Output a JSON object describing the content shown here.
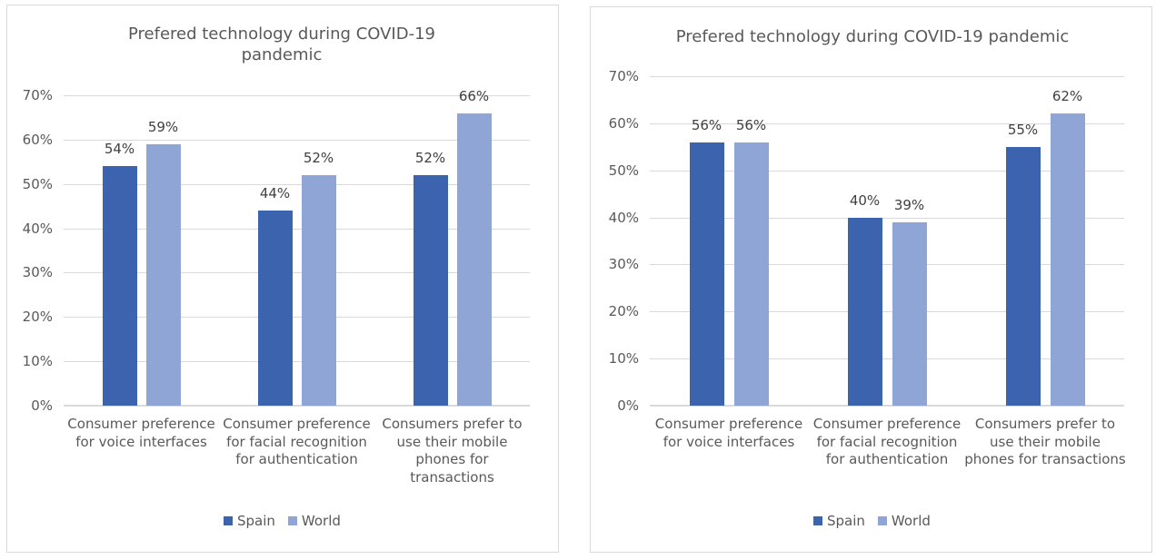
{
  "chart_data": [
    {
      "type": "bar",
      "title": "Prefered technology during COVID-19 pandemic",
      "categories": [
        "Consumer preference for voice interfaces",
        "Consumer preference for facial recognition for authentication",
        "Consumers prefer to use their mobile phones for transactions"
      ],
      "series": [
        {
          "name": "Spain",
          "color": "#3c64ae",
          "values": [
            54,
            44,
            52
          ],
          "labels": [
            "54%",
            "44%",
            "52%"
          ]
        },
        {
          "name": "World",
          "color": "#8fa5d5",
          "values": [
            59,
            52,
            66
          ],
          "labels": [
            "59%",
            "52%",
            "66%"
          ]
        }
      ],
      "ylim": [
        0,
        70
      ],
      "yticks": [
        "0%",
        "10%",
        "20%",
        "30%",
        "40%",
        "50%",
        "60%",
        "70%"
      ],
      "grid": true,
      "legend": "bottom"
    },
    {
      "type": "bar",
      "title": "Prefered technology during COVID-19 pandemic",
      "categories": [
        "Consumer preference for voice interfaces",
        "Consumer preference for facial recognition for authentication",
        "Consumers prefer to use their mobile phones for transactions"
      ],
      "series": [
        {
          "name": "Spain",
          "color": "#3c64ae",
          "values": [
            56,
            40,
            55
          ],
          "labels": [
            "56%",
            "40%",
            "55%"
          ]
        },
        {
          "name": "World",
          "color": "#8fa5d5",
          "values": [
            56,
            39,
            62
          ],
          "labels": [
            "56%",
            "39%",
            "62%"
          ]
        }
      ],
      "ylim": [
        0,
        70
      ],
      "yticks": [
        "0%",
        "10%",
        "20%",
        "30%",
        "40%",
        "50%",
        "60%",
        "70%"
      ],
      "grid": true,
      "legend": "bottom"
    }
  ]
}
